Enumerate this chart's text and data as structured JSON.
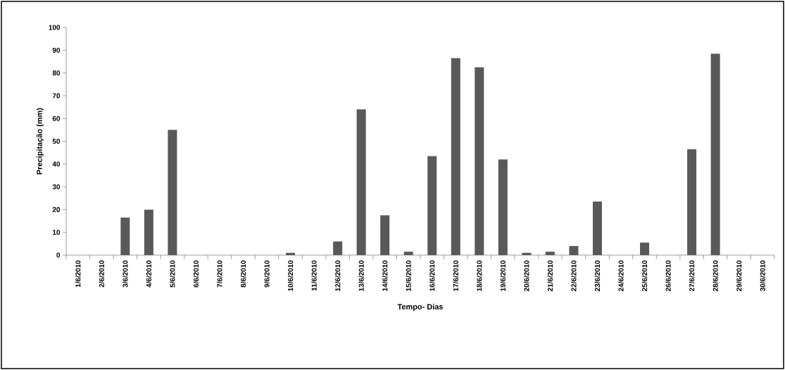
{
  "chart_data": {
    "type": "bar",
    "xlabel": "Tempo- Dias",
    "ylabel": "Precipitação (mm)",
    "categories": [
      "1/6/2010",
      "2/6/2010",
      "3/6/2010",
      "4/6/2010",
      "5/6/2010",
      "6/6/2010",
      "7/6/2010",
      "8/6/2010",
      "9/6/2010",
      "10/6/2010",
      "11/6/2010",
      "12/6/2010",
      "13/6/2010",
      "14/6/2010",
      "15/6/2010",
      "16/6/2010",
      "17/6/2010",
      "18/6/2010",
      "19/6/2010",
      "20/6/2010",
      "21/6/2010",
      "22/6/2010",
      "23/6/2010",
      "24/6/2010",
      "25/6/2010",
      "26/6/2010",
      "27/6/2010",
      "28/6/2010",
      "29/6/2010",
      "30/6/2010"
    ],
    "values": [
      0,
      0,
      16.5,
      20,
      55,
      0,
      0,
      0,
      0,
      1,
      0,
      6,
      64,
      17.5,
      1.5,
      43.5,
      86.5,
      82.5,
      42,
      1,
      1.5,
      4,
      23.5,
      0,
      5.5,
      0,
      46.5,
      88.5,
      0,
      0
    ],
    "color": "#595959",
    "ylim": [
      0,
      100
    ],
    "yticks": [
      0,
      10,
      20,
      30,
      40,
      50,
      60,
      70,
      80,
      90,
      100
    ]
  }
}
